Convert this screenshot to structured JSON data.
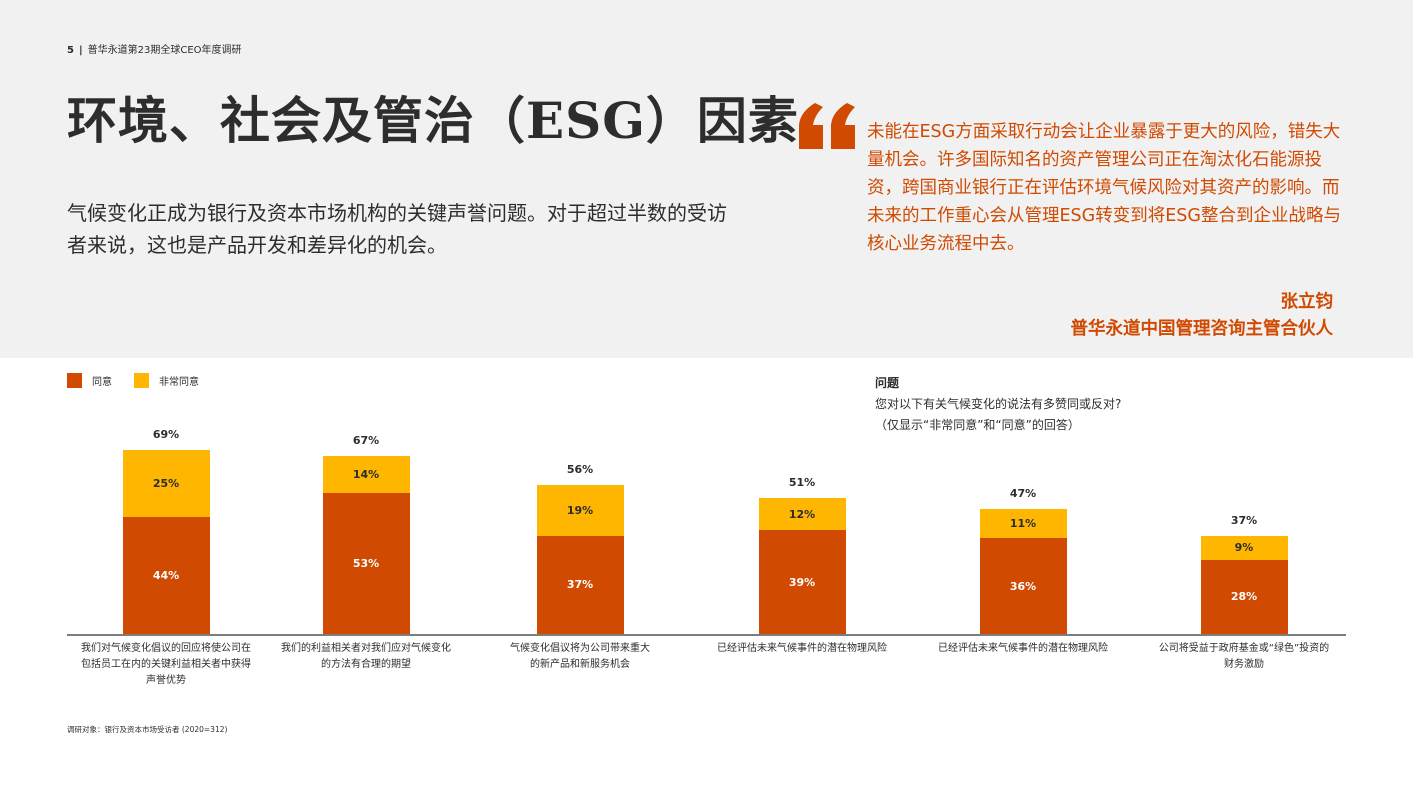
{
  "header": {
    "page_number": "5",
    "separator": "|",
    "report_title": "普华永道第23期全球CEO年度调研",
    "title": "环境、社会及管治（ESG）因素",
    "intro": "气候变化正成为银行及资本市场机构的关键声誉问题。对于超过半数的受访者来说，这也是产品开发和差异化的机会。"
  },
  "quote": {
    "icon": "quote-mark-icon",
    "text": "未能在ESG方面采取行动会让企业暴露于更大的风险，错失大量机会。许多国际知名的资产管理公司正在淘汰化石能源投资，跨国商业银行正在评估环境气候风险对其资产的影响。而未来的工作重心会从管理ESG转变到将ESG整合到企业战略与核心业务流程中去。",
    "author": "张立钧",
    "role": "普华永道中国管理咨询主管合伙人",
    "color": "#d04a02"
  },
  "legend": [
    {
      "label": "同意",
      "color": "#d04a02"
    },
    {
      "label": "非常同意",
      "color": "#ffb600"
    }
  ],
  "question": {
    "title": "问题",
    "line1": "您对以下有关气候变化的说法有多赞同或反对?",
    "line2": "（仅显示“非常同意”和“同意”的回答）"
  },
  "chart_data": {
    "type": "bar",
    "stacked": true,
    "title": "",
    "xlabel": "",
    "ylabel": "",
    "ylim": [
      0,
      100
    ],
    "grid": false,
    "legend_position": "top-left",
    "categories": [
      "我们对气候变化倡议的回应将使公司在包括员工在内的关键利益相关者中获得声誉优势",
      "我们的利益相关者对我们应对气候变化的方法有合理的期望",
      "气候变化倡议将为公司带来重大的新产品和新服务机会",
      "已经评估未来气候事件的潜在物理风险",
      "已经评估未来气候事件的潜在物理风险",
      "公司将受益于政府基金或“绿色”投资的财务激励"
    ],
    "category_lines": [
      [
        "我们对气候变化倡议的回应将使公司在",
        "包括员工在内的关键利益相关者中获得",
        "声誉优势"
      ],
      [
        "我们的利益相关者对我们应对气候变化",
        "的方法有合理的期望"
      ],
      [
        "气候变化倡议将为公司带来重大",
        "的新产品和新服务机会"
      ],
      [
        "已经评估未来气候事件的潜在物理风险"
      ],
      [
        "已经评估未来气候事件的潜在物理风险"
      ],
      [
        "公司将受益于政府基金或“绿色”投资的",
        "财务激励"
      ]
    ],
    "series": [
      {
        "name": "同意",
        "color": "#d04a02",
        "values": [
          44,
          53,
          37,
          39,
          36,
          28
        ]
      },
      {
        "name": "非常同意",
        "color": "#ffb600",
        "values": [
          25,
          14,
          19,
          12,
          11,
          9
        ]
      }
    ],
    "totals": [
      69,
      67,
      56,
      51,
      47,
      37
    ],
    "unit": "%"
  },
  "footnote": "调研对象：银行及资本市场受访者 (2020=312)"
}
